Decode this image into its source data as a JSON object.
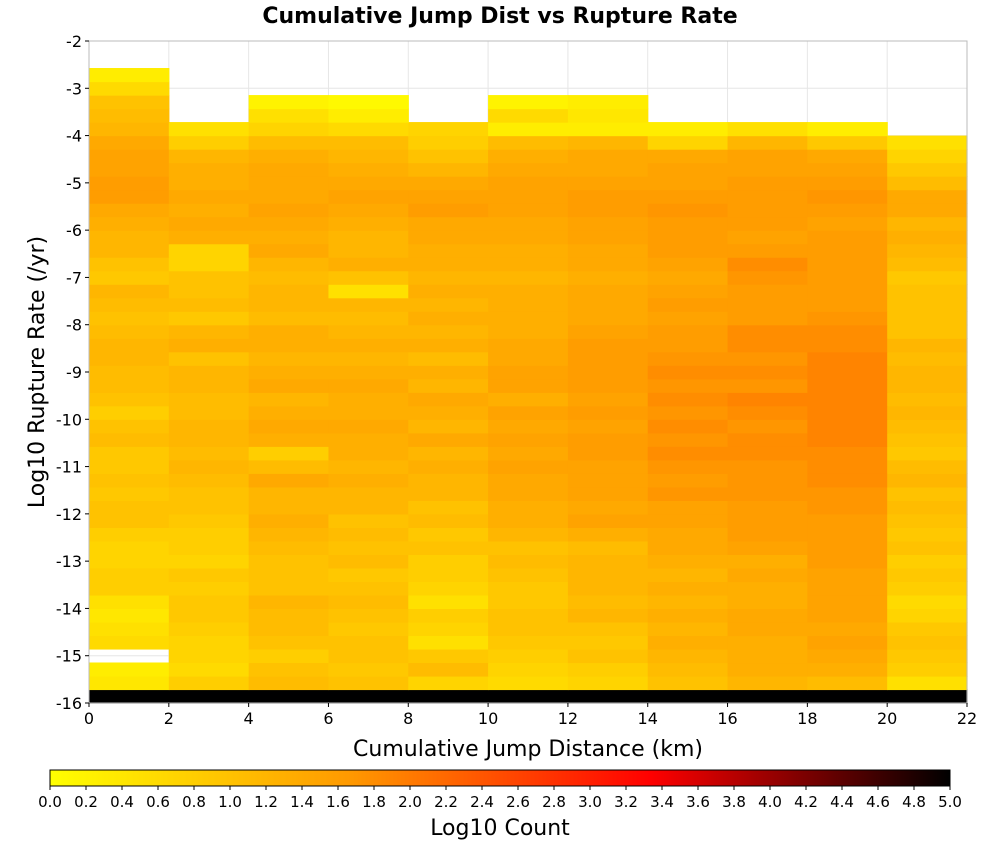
{
  "chart_data": {
    "type": "heatmap",
    "title": "Cumulative Jump Dist vs Rupture Rate",
    "xlabel": "Cumulative Jump Distance (km)",
    "ylabel": "Log10 Rupture Rate (/yr)",
    "xlim": [
      0,
      22
    ],
    "ylim": [
      -16,
      -2
    ],
    "x_ticks": [
      "0",
      "2",
      "4",
      "6",
      "8",
      "10",
      "12",
      "14",
      "16",
      "18",
      "20",
      "22"
    ],
    "y_ticks": [
      "-2",
      "-3",
      "-4",
      "-5",
      "-6",
      "-7",
      "-8",
      "-9",
      "-10",
      "-11",
      "-12",
      "-13",
      "-14",
      "-15",
      "-16"
    ],
    "x_bin_width": 2,
    "y_bin_height": 0.2857,
    "x_bin_starts": [
      0,
      2,
      4,
      6,
      8,
      10,
      12,
      14,
      16,
      18,
      20
    ],
    "y_bin_starts": [
      -16.0,
      -15.714,
      -15.429,
      -15.143,
      -14.857,
      -14.571,
      -14.286,
      -14.0,
      -13.714,
      -13.429,
      -13.143,
      -12.857,
      -12.571,
      -12.286,
      -12.0,
      -11.714,
      -11.429,
      -11.143,
      -10.857,
      -10.571,
      -10.286,
      -10.0,
      -9.714,
      -9.429,
      -9.143,
      -8.857,
      -8.571,
      -8.286,
      -8.0,
      -7.714,
      -7.429,
      -7.143,
      -6.857,
      -6.571,
      -6.286,
      -6.0,
      -5.714,
      -5.429,
      -5.143,
      -4.857,
      -4.571,
      -4.286,
      -4.0,
      -3.714,
      -3.429,
      -3.143,
      -2.857,
      -2.571,
      -2.286
    ],
    "values_note_not_rendered": "",
    "values": [
      [
        5.0,
        5.0,
        5.0,
        5.0,
        5.0,
        5.0,
        5.0,
        5.0,
        5.0,
        5.0,
        5.0
      ],
      [
        0.4,
        0.8,
        1.1,
        1.0,
        0.7,
        0.6,
        0.7,
        1.0,
        1.2,
        1.1,
        0.5
      ],
      [
        0.3,
        0.6,
        1.0,
        0.9,
        1.1,
        0.7,
        0.8,
        1.1,
        1.3,
        1.3,
        0.8
      ],
      [
        null,
        0.7,
        0.8,
        1.0,
        0.9,
        0.8,
        1.0,
        1.2,
        1.3,
        1.4,
        0.9
      ],
      [
        0.6,
        0.7,
        1.0,
        1.0,
        0.5,
        0.9,
        0.9,
        1.3,
        1.3,
        1.5,
        1.0
      ],
      [
        0.5,
        0.8,
        1.1,
        0.9,
        0.7,
        1.0,
        1.0,
        1.2,
        1.4,
        1.4,
        0.9
      ],
      [
        0.4,
        0.9,
        1.1,
        1.0,
        0.8,
        1.0,
        1.2,
        1.3,
        1.4,
        1.5,
        0.7
      ],
      [
        0.5,
        0.9,
        1.2,
        1.1,
        0.5,
        0.9,
        1.1,
        1.2,
        1.3,
        1.5,
        0.6
      ],
      [
        0.8,
        0.8,
        1.0,
        1.0,
        0.7,
        0.9,
        1.2,
        1.3,
        1.3,
        1.5,
        0.8
      ],
      [
        0.8,
        0.9,
        1.0,
        0.9,
        0.8,
        1.0,
        1.2,
        1.2,
        1.4,
        1.5,
        0.9
      ],
      [
        0.7,
        0.7,
        1.0,
        1.1,
        0.8,
        1.1,
        1.2,
        1.3,
        1.3,
        1.6,
        0.8
      ],
      [
        0.7,
        0.8,
        1.1,
        1.0,
        1.0,
        1.0,
        1.1,
        1.4,
        1.5,
        1.6,
        1.0
      ],
      [
        0.8,
        0.8,
        1.2,
        1.1,
        0.9,
        1.2,
        1.3,
        1.4,
        1.6,
        1.6,
        0.9
      ],
      [
        1.0,
        0.9,
        1.3,
        1.0,
        1.1,
        1.3,
        1.5,
        1.5,
        1.6,
        1.6,
        1.0
      ],
      [
        1.0,
        1.0,
        1.2,
        1.2,
        1.0,
        1.3,
        1.4,
        1.5,
        1.6,
        1.7,
        1.1
      ],
      [
        0.9,
        1.0,
        1.2,
        1.2,
        1.2,
        1.4,
        1.5,
        1.7,
        1.7,
        1.7,
        1.0
      ],
      [
        1.0,
        1.1,
        1.4,
        1.3,
        1.2,
        1.4,
        1.5,
        1.6,
        1.7,
        1.8,
        1.2
      ],
      [
        0.9,
        1.2,
        1.1,
        1.2,
        1.3,
        1.5,
        1.5,
        1.7,
        1.7,
        1.8,
        1.1
      ],
      [
        0.9,
        1.1,
        0.8,
        1.3,
        1.2,
        1.4,
        1.6,
        1.8,
        1.8,
        1.8,
        0.9
      ],
      [
        1.1,
        1.2,
        1.3,
        1.3,
        1.4,
        1.5,
        1.6,
        1.7,
        1.8,
        1.9,
        1.0
      ],
      [
        1.0,
        1.2,
        1.4,
        1.4,
        1.2,
        1.4,
        1.5,
        1.8,
        1.7,
        1.9,
        1.1
      ],
      [
        0.8,
        1.1,
        1.3,
        1.3,
        1.3,
        1.5,
        1.6,
        1.7,
        1.8,
        1.9,
        1.2
      ],
      [
        1.0,
        1.1,
        1.2,
        1.3,
        1.4,
        1.3,
        1.5,
        1.8,
        1.9,
        1.9,
        1.1
      ],
      [
        1.1,
        1.2,
        1.4,
        1.4,
        1.2,
        1.5,
        1.6,
        1.7,
        1.7,
        1.9,
        1.2
      ],
      [
        1.1,
        1.2,
        1.3,
        1.3,
        1.3,
        1.5,
        1.6,
        1.8,
        1.8,
        1.9,
        1.2
      ],
      [
        1.2,
        1.0,
        1.2,
        1.2,
        1.1,
        1.4,
        1.6,
        1.7,
        1.7,
        1.9,
        1.1
      ],
      [
        1.2,
        1.3,
        1.3,
        1.3,
        1.3,
        1.4,
        1.6,
        1.6,
        1.8,
        1.8,
        1.2
      ],
      [
        1.1,
        1.2,
        1.3,
        1.2,
        1.2,
        1.3,
        1.5,
        1.6,
        1.8,
        1.8,
        1.0
      ],
      [
        1.0,
        0.9,
        1.1,
        1.1,
        1.3,
        1.3,
        1.4,
        1.5,
        1.6,
        1.7,
        1.0
      ],
      [
        1.1,
        1.1,
        1.2,
        1.2,
        1.2,
        1.3,
        1.4,
        1.6,
        1.6,
        1.6,
        1.0
      ],
      [
        1.2,
        1.0,
        1.2,
        0.5,
        1.3,
        1.3,
        1.4,
        1.5,
        1.6,
        1.6,
        1.0
      ],
      [
        0.9,
        1.0,
        1.1,
        1.0,
        1.2,
        1.2,
        1.3,
        1.4,
        1.7,
        1.6,
        0.9
      ],
      [
        1.0,
        0.7,
        1.2,
        1.3,
        1.3,
        1.3,
        1.4,
        1.5,
        1.8,
        1.6,
        1.1
      ],
      [
        1.2,
        0.7,
        1.4,
        1.2,
        1.3,
        1.3,
        1.4,
        1.6,
        1.6,
        1.6,
        1.2
      ],
      [
        1.2,
        1.3,
        1.3,
        1.2,
        1.4,
        1.4,
        1.5,
        1.6,
        1.5,
        1.6,
        1.3
      ],
      [
        1.3,
        1.4,
        1.4,
        1.3,
        1.4,
        1.4,
        1.5,
        1.6,
        1.6,
        1.5,
        1.2
      ],
      [
        1.4,
        1.3,
        1.5,
        1.4,
        1.6,
        1.5,
        1.6,
        1.7,
        1.6,
        1.6,
        1.4
      ],
      [
        1.6,
        1.4,
        1.4,
        1.5,
        1.5,
        1.5,
        1.6,
        1.6,
        1.6,
        1.7,
        1.4
      ],
      [
        1.6,
        1.3,
        1.4,
        1.4,
        1.4,
        1.5,
        1.5,
        1.5,
        1.6,
        1.6,
        1.1
      ],
      [
        1.5,
        1.3,
        1.4,
        1.3,
        1.2,
        1.4,
        1.4,
        1.5,
        1.5,
        1.5,
        0.9
      ],
      [
        1.5,
        1.2,
        1.3,
        1.2,
        1.0,
        1.3,
        1.4,
        1.4,
        1.5,
        1.4,
        0.7
      ],
      [
        1.4,
        0.8,
        1.1,
        1.1,
        0.8,
        1.1,
        1.2,
        0.7,
        1.2,
        0.9,
        0.5
      ],
      [
        1.2,
        0.5,
        0.7,
        0.6,
        0.7,
        0.3,
        0.3,
        0.3,
        0.5,
        0.3,
        null
      ],
      [
        1.1,
        null,
        0.5,
        0.3,
        null,
        0.6,
        0.4,
        null,
        null,
        null,
        null
      ],
      [
        1.0,
        null,
        0.2,
        0.1,
        null,
        0.2,
        0.3,
        null,
        null,
        null,
        null
      ],
      [
        0.6,
        null,
        null,
        null,
        null,
        null,
        null,
        null,
        null,
        null,
        null
      ],
      [
        0.3,
        null,
        null,
        null,
        null,
        null,
        null,
        null,
        null,
        null,
        null
      ],
      [
        null,
        null,
        null,
        null,
        null,
        null,
        null,
        null,
        null,
        null,
        null
      ],
      [
        null,
        null,
        null,
        null,
        null,
        null,
        null,
        null,
        null,
        null,
        null
      ]
    ],
    "colorbar": {
      "label": "Log10 Count",
      "min": 0.0,
      "max": 5.0,
      "ticks": [
        "0.0",
        "0.2",
        "0.4",
        "0.6",
        "0.8",
        "1.0",
        "1.2",
        "1.4",
        "1.6",
        "1.8",
        "2.0",
        "2.2",
        "2.4",
        "2.6",
        "2.8",
        "3.0",
        "3.2",
        "3.4",
        "3.6",
        "3.8",
        "4.0",
        "4.2",
        "4.4",
        "4.6",
        "4.8",
        "5.0"
      ],
      "colors": [
        "#ffff00",
        "#ff9900",
        "#ff0000",
        "#000000"
      ],
      "placement": "bottom"
    },
    "grid": true
  }
}
